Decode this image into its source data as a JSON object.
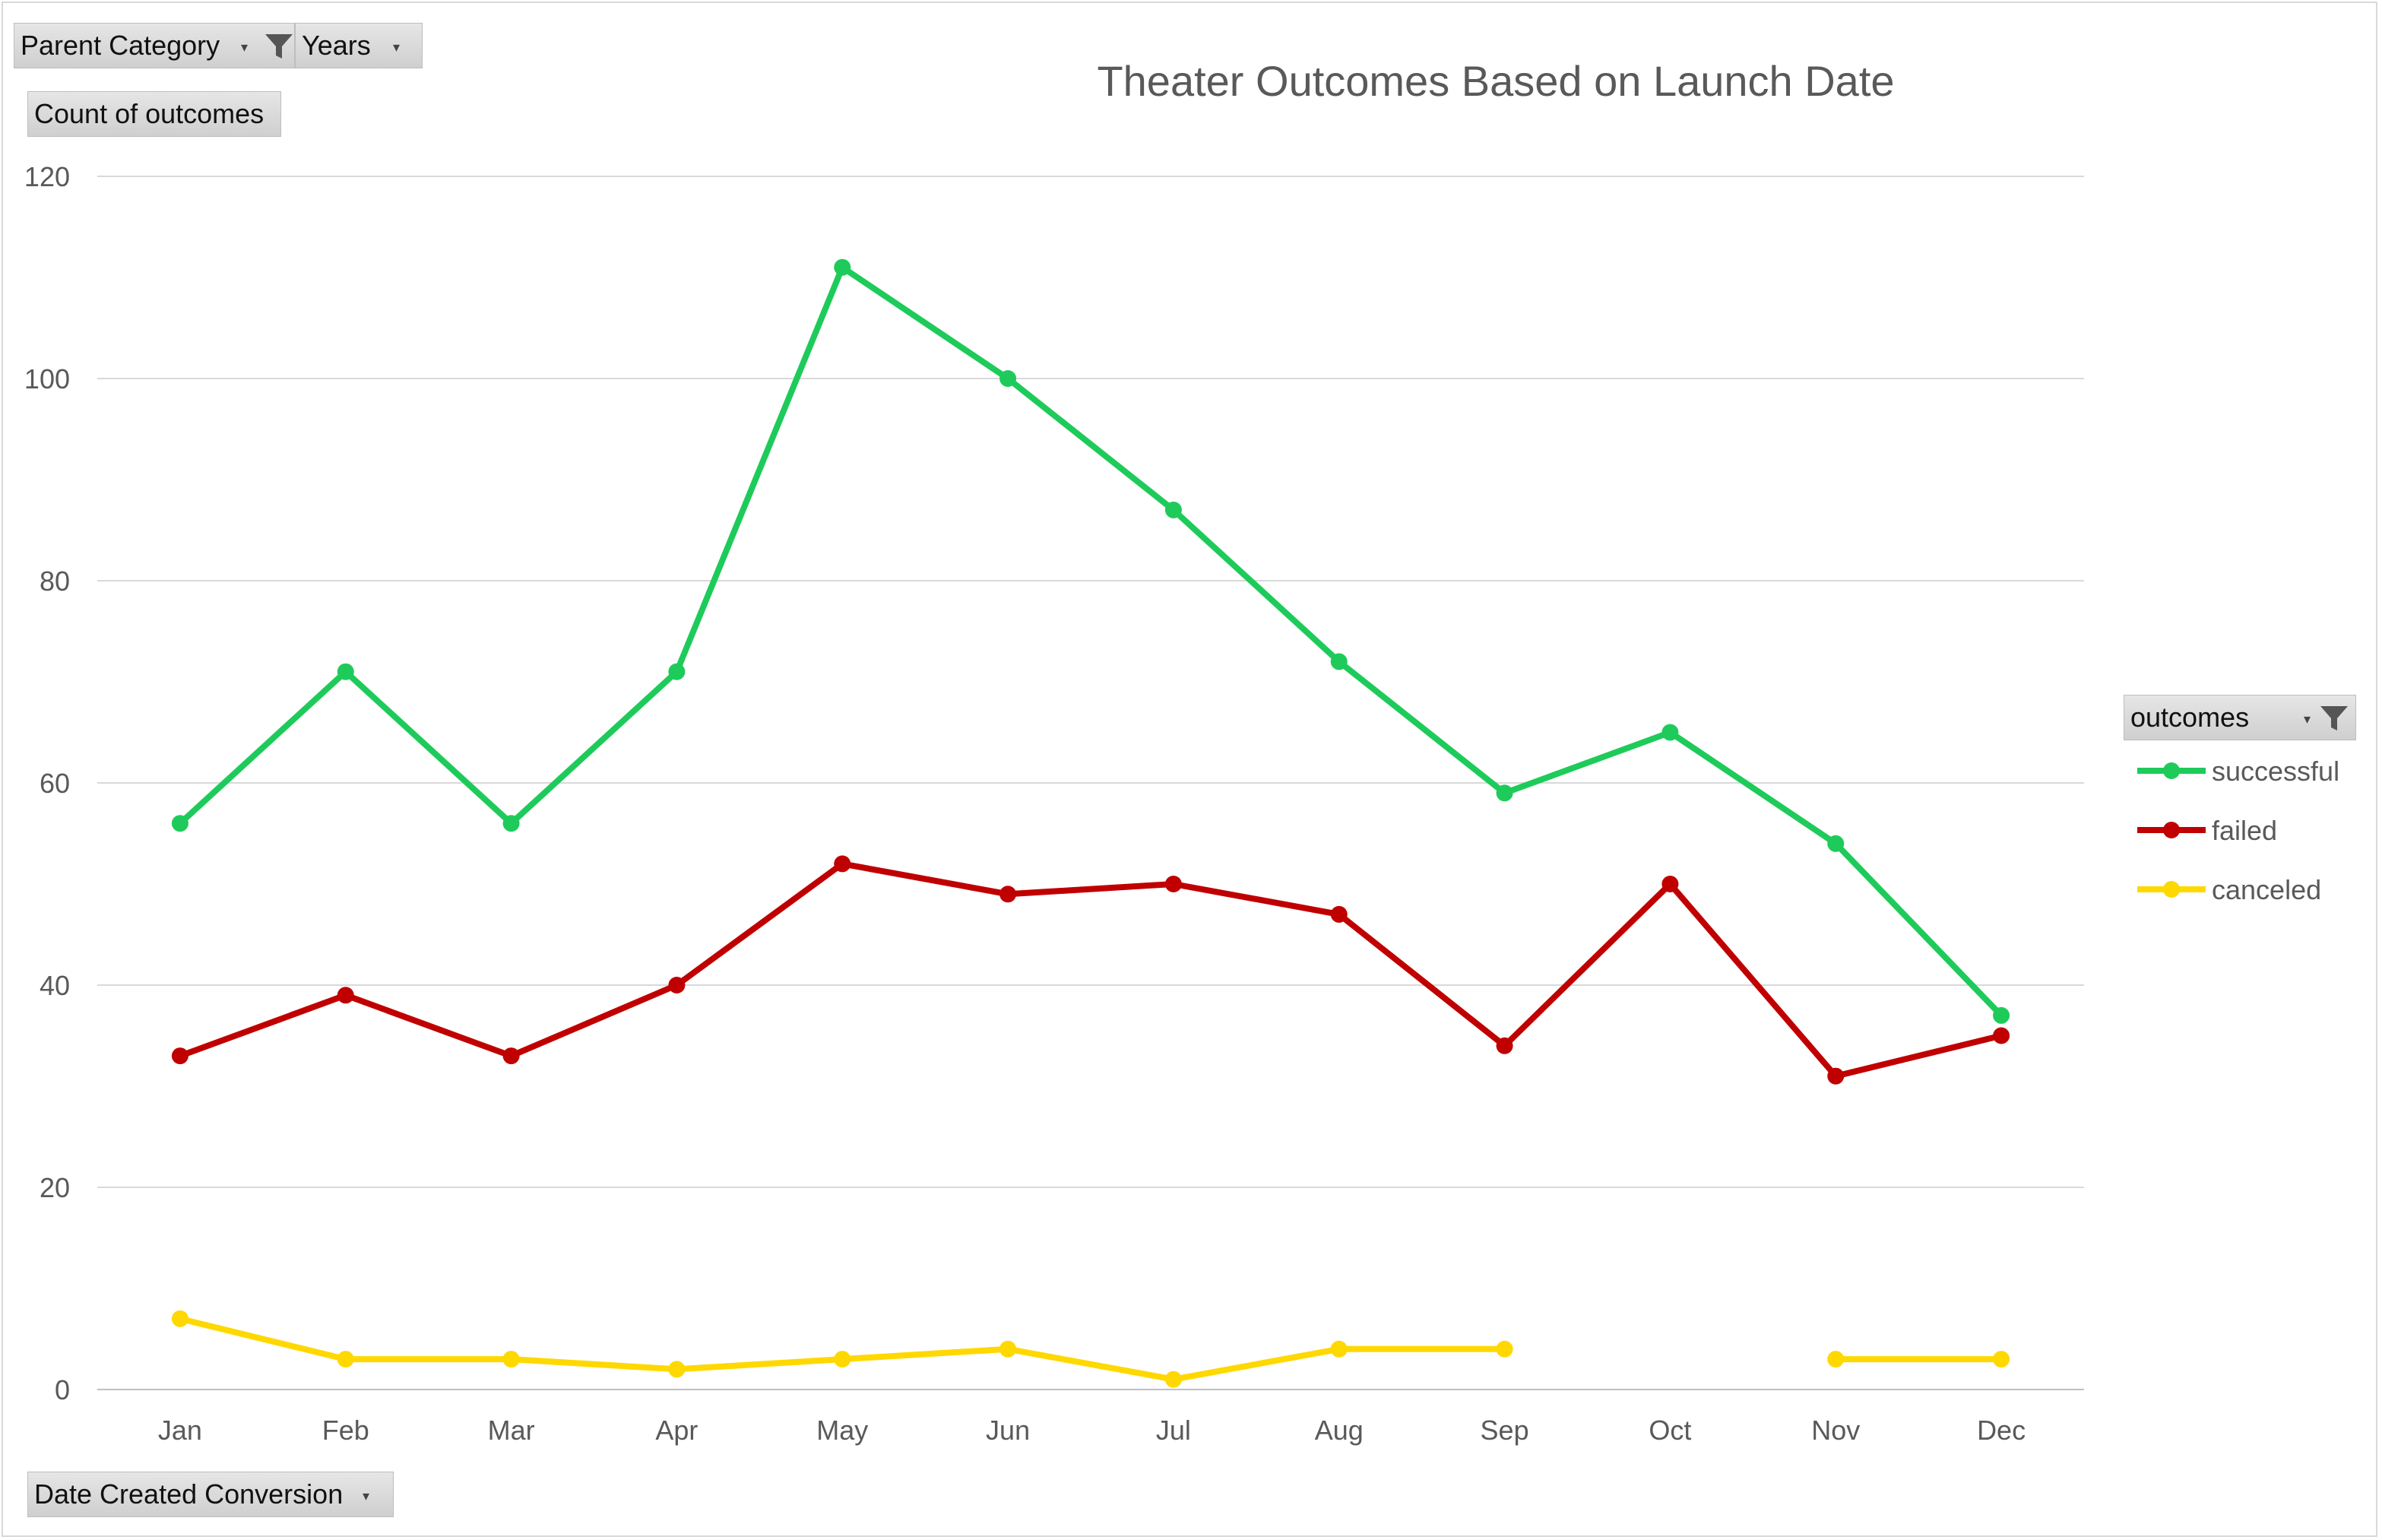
{
  "pivot_fields": {
    "parent_category": "Parent Category",
    "years": "Years",
    "count_of_outcomes": "Count of outcomes",
    "date_created": "Date Created Conversion",
    "outcomes": "outcomes"
  },
  "chart_data": {
    "type": "line",
    "title": "Theater Outcomes Based on Launch Date",
    "xlabel": "",
    "ylabel": "",
    "ylim": [
      0,
      120
    ],
    "yticks": [
      0,
      20,
      40,
      60,
      80,
      100,
      120
    ],
    "categories": [
      "Jan",
      "Feb",
      "Mar",
      "Apr",
      "May",
      "Jun",
      "Jul",
      "Aug",
      "Sep",
      "Oct",
      "Nov",
      "Dec"
    ],
    "grid": true,
    "legend_position": "right",
    "series": [
      {
        "name": "successful",
        "color": "#1ecb5a",
        "values": [
          56,
          71,
          56,
          71,
          111,
          100,
          87,
          72,
          59,
          65,
          54,
          37
        ]
      },
      {
        "name": "failed",
        "color": "#c00000",
        "values": [
          33,
          39,
          33,
          40,
          52,
          49,
          50,
          47,
          34,
          50,
          31,
          35
        ]
      },
      {
        "name": "canceled",
        "color": "#ffd800",
        "values": [
          7,
          3,
          3,
          2,
          3,
          4,
          1,
          4,
          4,
          null,
          3,
          3
        ]
      }
    ]
  }
}
